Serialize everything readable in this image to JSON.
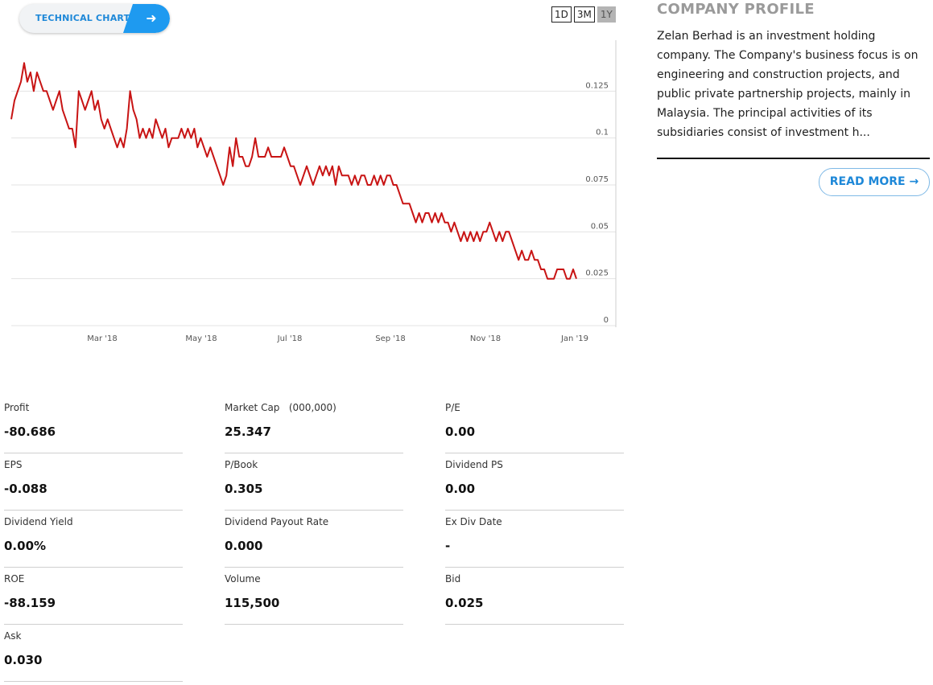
{
  "technical_chart": {
    "label": "TECHNICAL CHART",
    "arrow_icon": "arrow-right-icon"
  },
  "range_buttons": [
    {
      "label": "1D",
      "active": false
    },
    {
      "label": "3M",
      "active": false
    },
    {
      "label": "1Y",
      "active": true
    }
  ],
  "chart_data": {
    "type": "line",
    "series": [
      {
        "color": "#c81414",
        "points": [
          [
            "2018-01-02",
            0.11
          ],
          [
            "2018-01-03",
            0.12
          ],
          [
            "2018-01-04",
            0.125
          ],
          [
            "2018-01-05",
            0.13
          ],
          [
            "2018-01-08",
            0.14
          ],
          [
            "2018-01-09",
            0.13
          ],
          [
            "2018-01-10",
            0.135
          ],
          [
            "2018-01-11",
            0.125
          ],
          [
            "2018-01-12",
            0.135
          ],
          [
            "2018-01-15",
            0.13
          ],
          [
            "2018-01-16",
            0.125
          ],
          [
            "2018-01-17",
            0.125
          ],
          [
            "2018-01-18",
            0.12
          ],
          [
            "2018-01-19",
            0.115
          ],
          [
            "2018-01-22",
            0.12
          ],
          [
            "2018-01-23",
            0.125
          ],
          [
            "2018-01-24",
            0.115
          ],
          [
            "2018-01-25",
            0.11
          ],
          [
            "2018-01-26",
            0.105
          ],
          [
            "2018-01-29",
            0.105
          ],
          [
            "2018-01-30",
            0.095
          ],
          [
            "2018-01-31",
            0.125
          ],
          [
            "2018-02-01",
            0.12
          ],
          [
            "2018-02-02",
            0.115
          ],
          [
            "2018-02-05",
            0.12
          ],
          [
            "2018-02-06",
            0.125
          ],
          [
            "2018-02-07",
            0.115
          ],
          [
            "2018-02-08",
            0.12
          ],
          [
            "2018-02-09",
            0.11
          ],
          [
            "2018-02-12",
            0.105
          ],
          [
            "2018-02-13",
            0.11
          ],
          [
            "2018-02-14",
            0.105
          ],
          [
            "2018-02-15",
            0.1
          ],
          [
            "2018-02-19",
            0.095
          ],
          [
            "2018-02-20",
            0.1
          ],
          [
            "2018-02-21",
            0.095
          ],
          [
            "2018-02-22",
            0.105
          ],
          [
            "2018-02-23",
            0.125
          ],
          [
            "2018-02-26",
            0.115
          ],
          [
            "2018-02-27",
            0.11
          ],
          [
            "2018-02-28",
            0.1
          ],
          [
            "2018-03-01",
            0.105
          ],
          [
            "2018-03-02",
            0.1
          ],
          [
            "2018-03-05",
            0.105
          ],
          [
            "2018-03-06",
            0.1
          ],
          [
            "2018-03-07",
            0.11
          ],
          [
            "2018-03-08",
            0.105
          ],
          [
            "2018-03-09",
            0.1
          ],
          [
            "2018-03-12",
            0.105
          ],
          [
            "2018-03-13",
            0.095
          ],
          [
            "2018-03-14",
            0.1
          ],
          [
            "2018-03-15",
            0.1
          ],
          [
            "2018-03-16",
            0.1
          ],
          [
            "2018-03-19",
            0.105
          ],
          [
            "2018-03-20",
            0.1
          ],
          [
            "2018-03-21",
            0.105
          ],
          [
            "2018-03-22",
            0.1
          ],
          [
            "2018-03-23",
            0.105
          ],
          [
            "2018-03-26",
            0.095
          ],
          [
            "2018-03-27",
            0.1
          ],
          [
            "2018-03-28",
            0.095
          ],
          [
            "2018-03-29",
            0.09
          ],
          [
            "2018-03-30",
            0.095
          ],
          [
            "2018-04-02",
            0.09
          ],
          [
            "2018-04-03",
            0.085
          ],
          [
            "2018-04-04",
            0.08
          ],
          [
            "2018-04-05",
            0.075
          ],
          [
            "2018-04-06",
            0.08
          ],
          [
            "2018-04-09",
            0.095
          ],
          [
            "2018-04-10",
            0.085
          ],
          [
            "2018-04-11",
            0.1
          ],
          [
            "2018-04-12",
            0.09
          ],
          [
            "2018-04-13",
            0.09
          ],
          [
            "2018-04-16",
            0.085
          ],
          [
            "2018-04-17",
            0.085
          ],
          [
            "2018-04-18",
            0.09
          ],
          [
            "2018-04-19",
            0.1
          ],
          [
            "2018-04-20",
            0.09
          ],
          [
            "2018-04-23",
            0.09
          ],
          [
            "2018-04-24",
            0.09
          ],
          [
            "2018-04-25",
            0.095
          ],
          [
            "2018-04-26",
            0.09
          ],
          [
            "2018-04-27",
            0.09
          ],
          [
            "2018-04-30",
            0.09
          ],
          [
            "2018-05-02",
            0.09
          ],
          [
            "2018-05-03",
            0.095
          ],
          [
            "2018-05-04",
            0.09
          ],
          [
            "2018-05-07",
            0.085
          ],
          [
            "2018-05-08",
            0.085
          ],
          [
            "2018-05-10",
            0.08
          ],
          [
            "2018-05-11",
            0.075
          ],
          [
            "2018-05-14",
            0.08
          ],
          [
            "2018-05-15",
            0.085
          ],
          [
            "2018-05-16",
            0.08
          ],
          [
            "2018-05-17",
            0.075
          ],
          [
            "2018-05-18",
            0.08
          ],
          [
            "2018-05-21",
            0.085
          ],
          [
            "2018-05-22",
            0.08
          ],
          [
            "2018-05-23",
            0.085
          ],
          [
            "2018-05-24",
            0.08
          ],
          [
            "2018-05-25",
            0.085
          ],
          [
            "2018-05-28",
            0.075
          ],
          [
            "2018-05-29",
            0.085
          ],
          [
            "2018-05-30",
            0.08
          ],
          [
            "2018-05-31",
            0.08
          ],
          [
            "2018-06-01",
            0.08
          ],
          [
            "2018-06-04",
            0.075
          ],
          [
            "2018-06-05",
            0.08
          ],
          [
            "2018-06-06",
            0.075
          ],
          [
            "2018-06-07",
            0.08
          ],
          [
            "2018-06-08",
            0.08
          ],
          [
            "2018-06-11",
            0.075
          ],
          [
            "2018-06-12",
            0.075
          ],
          [
            "2018-06-13",
            0.08
          ],
          [
            "2018-06-14",
            0.075
          ],
          [
            "2018-06-15",
            0.08
          ],
          [
            "2018-06-18",
            0.075
          ],
          [
            "2018-06-19",
            0.08
          ],
          [
            "2018-06-20",
            0.08
          ],
          [
            "2018-06-21",
            0.075
          ],
          [
            "2018-06-22",
            0.075
          ],
          [
            "2018-06-25",
            0.07
          ],
          [
            "2018-06-26",
            0.065
          ],
          [
            "2018-06-27",
            0.065
          ],
          [
            "2018-06-28",
            0.065
          ],
          [
            "2018-06-29",
            0.06
          ],
          [
            "2018-07-02",
            0.055
          ],
          [
            "2018-07-03",
            0.06
          ],
          [
            "2018-07-04",
            0.055
          ],
          [
            "2018-07-05",
            0.06
          ],
          [
            "2018-07-06",
            0.06
          ],
          [
            "2018-07-09",
            0.055
          ],
          [
            "2018-07-10",
            0.06
          ],
          [
            "2018-07-11",
            0.055
          ],
          [
            "2018-07-12",
            0.06
          ],
          [
            "2018-07-13",
            0.055
          ],
          [
            "2018-07-16",
            0.055
          ],
          [
            "2018-07-17",
            0.05
          ],
          [
            "2018-07-18",
            0.055
          ],
          [
            "2018-07-19",
            0.05
          ],
          [
            "2018-07-20",
            0.045
          ],
          [
            "2018-07-23",
            0.05
          ],
          [
            "2018-07-24",
            0.045
          ],
          [
            "2018-07-25",
            0.05
          ],
          [
            "2018-07-26",
            0.045
          ],
          [
            "2018-07-27",
            0.05
          ],
          [
            "2018-07-30",
            0.045
          ],
          [
            "2018-07-31",
            0.05
          ],
          [
            "2018-08-01",
            0.05
          ],
          [
            "2018-08-02",
            0.055
          ],
          [
            "2018-08-03",
            0.05
          ],
          [
            "2018-08-06",
            0.045
          ],
          [
            "2018-08-07",
            0.05
          ],
          [
            "2018-08-08",
            0.045
          ],
          [
            "2018-08-09",
            0.05
          ],
          [
            "2018-08-10",
            0.05
          ],
          [
            "2018-08-13",
            0.045
          ],
          [
            "2018-08-14",
            0.04
          ],
          [
            "2018-08-15",
            0.035
          ],
          [
            "2018-08-16",
            0.04
          ],
          [
            "2018-08-17",
            0.035
          ],
          [
            "2018-08-20",
            0.035
          ],
          [
            "2018-08-21",
            0.04
          ],
          [
            "2018-08-23",
            0.035
          ],
          [
            "2018-08-24",
            0.035
          ],
          [
            "2018-08-27",
            0.03
          ],
          [
            "2018-08-28",
            0.03
          ],
          [
            "2018-08-29",
            0.025
          ],
          [
            "2018-08-30",
            0.025
          ],
          [
            "2018-09-03",
            0.025
          ],
          [
            "2018-09-04",
            0.03
          ],
          [
            "2018-09-05",
            0.03
          ],
          [
            "2018-09-06",
            0.03
          ],
          [
            "2018-09-07",
            0.025
          ],
          [
            "2018-09-10",
            0.025
          ],
          [
            "2018-09-12",
            0.03
          ],
          [
            "2018-09-13",
            0.025
          ]
        ]
      }
    ],
    "yticks": [
      "0.125",
      "0.1",
      "0.075",
      "0.05",
      "0.025",
      "0"
    ],
    "xticks": [
      "Mar '18",
      "May '18",
      "Jul '18",
      "Sep '18",
      "Nov '18",
      "Jan '19"
    ],
    "ylim": [
      0,
      0.15
    ],
    "grid": true
  },
  "profile": {
    "title_prefix": "COMPANY ",
    "title_bold": "PROFILE",
    "description": "Zelan Berhad is an investment holding company. The Company's business focus is on engineering and construction projects, and public private partnership projects, mainly in Malaysia. The principal activities of its subsidiaries consist of investment h...",
    "read_more_label": "READ MORE",
    "read_more_icon": "arrow-right-icon"
  },
  "stats": [
    {
      "label": "Profit",
      "value": "-80.686"
    },
    {
      "label": "Market Cap   (000,000)",
      "value": "25.347"
    },
    {
      "label": "P/E",
      "value": "0.00"
    },
    {
      "label": "EPS",
      "value": "-0.088"
    },
    {
      "label": "P/Book",
      "value": "0.305"
    },
    {
      "label": "Dividend PS",
      "value": "0.00"
    },
    {
      "label": "Dividend Yield",
      "value": "0.00%"
    },
    {
      "label": "Dividend Payout Rate",
      "value": "0.000"
    },
    {
      "label": "Ex Div Date",
      "value": "-"
    },
    {
      "label": "ROE",
      "value": "-88.159"
    },
    {
      "label": "Volume",
      "value": "115,500"
    },
    {
      "label": "Bid",
      "value": "0.025"
    },
    {
      "label": "Ask",
      "value": "0.030"
    }
  ]
}
